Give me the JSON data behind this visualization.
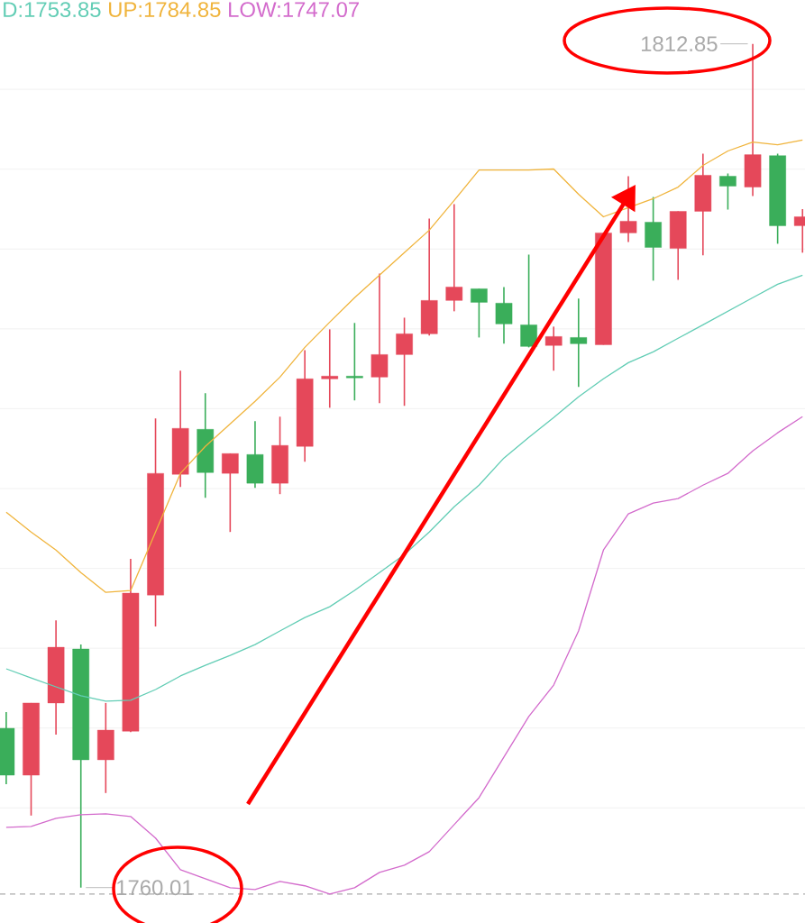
{
  "chart_data": {
    "type": "candlestick",
    "categories": [
      null,
      null,
      null,
      null,
      null,
      null,
      null,
      null,
      null,
      null,
      null,
      null,
      null,
      null,
      null,
      null,
      null,
      null,
      null,
      null,
      null,
      null,
      null,
      null,
      null,
      null,
      null,
      null,
      null,
      null,
      null,
      null,
      null
    ],
    "ohlc": [
      [
        1769.99,
        1771.0,
        1766.49,
        1767.05
      ],
      [
        1767.05,
        1771.57,
        1764.52,
        1771.57
      ],
      [
        1771.57,
        1776.75,
        1769.59,
        1775.06
      ],
      [
        1774.95,
        1775.23,
        1760.01,
        1768.01
      ],
      [
        1768.01,
        1771.57,
        1765.93,
        1769.87
      ],
      [
        1769.8,
        1780.59,
        1769.75,
        1778.45
      ],
      [
        1778.33,
        1789.39,
        1776.36,
        1785.95
      ],
      [
        1785.89,
        1792.38,
        1785.1,
        1788.77
      ],
      [
        1788.71,
        1790.97,
        1784.42,
        1786.0
      ],
      [
        1785.95,
        1787.19,
        1782.28,
        1787.19
      ],
      [
        1787.13,
        1789.22,
        1785.04,
        1785.33
      ],
      [
        1785.33,
        1789.5,
        1784.65,
        1787.7
      ],
      [
        1787.64,
        1793.67,
        1786.68,
        1791.87
      ],
      [
        1791.87,
        1794.97,
        1790.06,
        1792.04
      ],
      [
        1792.04,
        1795.37,
        1790.52,
        1791.93
      ],
      [
        1791.98,
        1798.47,
        1790.35,
        1793.39
      ],
      [
        1793.39,
        1795.7,
        1790.18,
        1794.69
      ],
      [
        1794.69,
        1801.91,
        1794.58,
        1796.78
      ],
      [
        1796.78,
        1802.81,
        1796.1,
        1797.62
      ],
      [
        1797.51,
        1797.51,
        1794.46,
        1796.66
      ],
      [
        1796.61,
        1797.62,
        1794.07,
        1795.31
      ],
      [
        1795.25,
        1799.65,
        1793.84,
        1793.9
      ],
      [
        1793.96,
        1795.14,
        1792.38,
        1794.52
      ],
      [
        1794.46,
        1796.89,
        1791.36,
        1794.07
      ],
      [
        1794.01,
        1801.01,
        1794.01,
        1801.01
      ],
      [
        1801.01,
        1804.56,
        1800.44,
        1801.74
      ],
      [
        1801.68,
        1803.26,
        1798.02,
        1800.1
      ],
      [
        1800.04,
        1802.36,
        1798.07,
        1802.36
      ],
      [
        1802.36,
        1805.97,
        1799.6,
        1804.62
      ],
      [
        1804.56,
        1804.73,
        1802.47,
        1803.94
      ],
      [
        1803.88,
        1812.85,
        1803.32,
        1805.91
      ],
      [
        1805.85,
        1805.97,
        1800.33,
        1801.46
      ],
      [
        1801.46,
        1802.5,
        1799.77,
        1802.02
      ]
    ],
    "colors": [
      "#3aae5a",
      "#e5485a",
      "#e5485a",
      "#3aae5a",
      "#e5485a",
      "#e5485a",
      "#e5485a",
      "#e5485a",
      "#3aae5a",
      "#e5485a",
      "#3aae5a",
      "#e5485a",
      "#e5485a",
      "#e5485a",
      "#3aae5a",
      "#e5485a",
      "#e5485a",
      "#e5485a",
      "#e5485a",
      "#3aae5a",
      "#3aae5a",
      "#3aae5a",
      "#e5485a",
      "#3aae5a",
      "#e5485a",
      "#e5485a",
      "#3aae5a",
      "#e5485a",
      "#e5485a",
      "#3aae5a",
      "#e5485a",
      "#3aae5a",
      "#e5485a"
    ],
    "series": [
      {
        "type": "line",
        "color": "#62cdb5",
        "values": [
          1773.71,
          1773.14,
          1772.58,
          1772.02,
          1771.68,
          1771.74,
          1772.41,
          1773.26,
          1773.93,
          1774.55,
          1775.23,
          1776.08,
          1776.92,
          1777.6,
          1778.62,
          1779.74,
          1780.87,
          1782.28,
          1783.86,
          1785.21,
          1786.91,
          1788.2,
          1789.44,
          1790.74,
          1791.87,
          1792.88,
          1793.56,
          1794.41,
          1795.25,
          1796.1,
          1796.95,
          1797.79,
          1798.36
        ]
      },
      {
        "type": "line",
        "color": "#f0b43c",
        "values": [
          1783.52,
          1782.28,
          1781.15,
          1779.74,
          1778.5,
          1778.61,
          1782.28,
          1785.95,
          1787.64,
          1789.05,
          1790.46,
          1791.98,
          1793.84,
          1795.42,
          1796.95,
          1798.36,
          1799.77,
          1801.18,
          1803.04,
          1804.95,
          1804.95,
          1804.95,
          1805.01,
          1803.43,
          1802.02,
          1802.59,
          1803.15,
          1803.88,
          1805.24,
          1806.14,
          1806.7,
          1806.53,
          1806.82
        ]
      },
      {
        "type": "line",
        "color": "#d36bcc",
        "values": [
          1763.78,
          1763.84,
          1764.35,
          1764.57,
          1764.63,
          1764.46,
          1763.11,
          1761.13,
          1760.57,
          1760.0,
          1759.89,
          1760.4,
          1760.12,
          1759.61,
          1760.0,
          1760.96,
          1761.41,
          1762.26,
          1763.95,
          1765.64,
          1768.18,
          1770.72,
          1772.69,
          1776.08,
          1781.15,
          1783.41,
          1784.09,
          1784.37,
          1785.21,
          1785.95,
          1787.36,
          1788.49,
          1789.5
        ]
      }
    ],
    "yticks": [
      {
        "value": 1765,
        "label": null
      },
      {
        "value": 1770,
        "label": null
      },
      {
        "value": 1775,
        "label": null
      },
      {
        "value": 1780,
        "label": null
      },
      {
        "value": 1785,
        "label": null
      },
      {
        "value": 1790,
        "label": null
      },
      {
        "value": 1795,
        "label": null
      },
      {
        "value": 1800,
        "label": null
      },
      {
        "value": 1805,
        "label": null
      },
      {
        "value": 1810,
        "label": null
      }
    ],
    "grid": "y",
    "ref_lines": [
      {
        "axis": "y",
        "value": 1759.6,
        "color": "#aaaaaa",
        "line_style": "dashed"
      }
    ],
    "annotations": [
      "D:1753.85",
      "UP:1784.85",
      "LOW:1747.07",
      "1812.85",
      "1760.01"
    ]
  }
}
